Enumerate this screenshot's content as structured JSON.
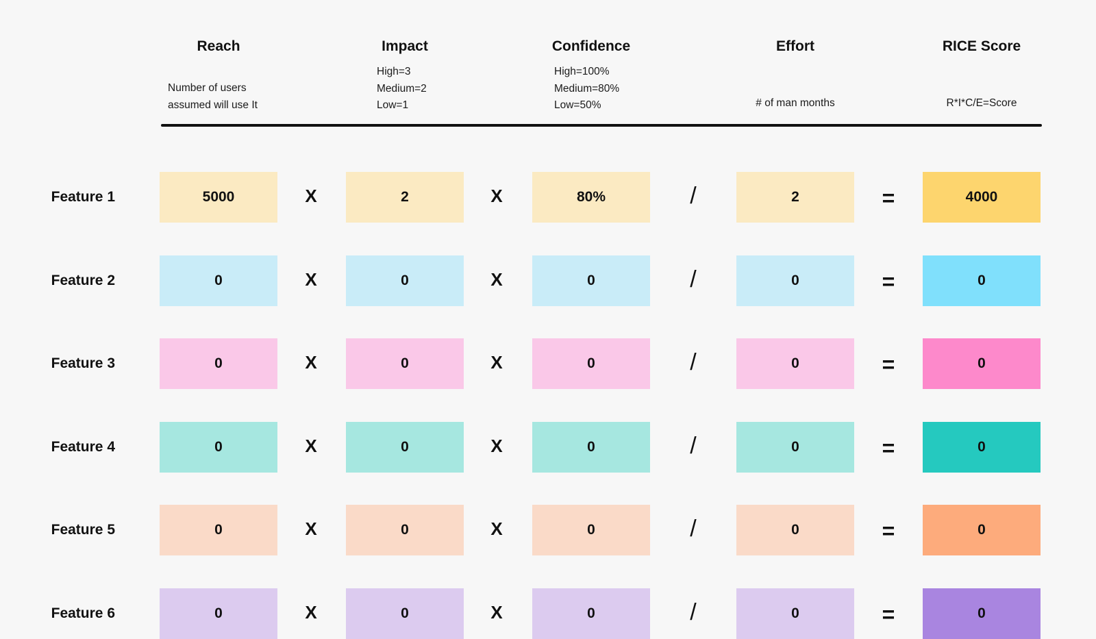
{
  "columns": {
    "reach": {
      "title": "Reach",
      "desc": [
        "Number of users",
        "assumed will use It"
      ]
    },
    "impact": {
      "title": "Impact",
      "desc": [
        "High=3",
        "Medium=2",
        "Low=1"
      ]
    },
    "confidence": {
      "title": "Confidence",
      "desc": [
        "High=100%",
        "Medium=80%",
        "Low=50%"
      ]
    },
    "effort": {
      "title": "Effort",
      "desc": [
        "# of man months"
      ]
    },
    "score": {
      "title": "RICE Score",
      "desc": [
        "R*I*C/E=Score"
      ]
    }
  },
  "operators": {
    "times": "X",
    "divide": "/",
    "equals": "="
  },
  "rows": [
    {
      "label": "Feature 1",
      "reach": "5000",
      "impact": "2",
      "confidence": "80%",
      "effort": "2",
      "score": "4000",
      "light": "#fbeac2",
      "strong": "#fdd56e"
    },
    {
      "label": "Feature 2",
      "reach": "0",
      "impact": "0",
      "confidence": "0",
      "effort": "0",
      "score": "0",
      "light": "#c9ecf8",
      "strong": "#80e0fc"
    },
    {
      "label": "Feature 3",
      "reach": "0",
      "impact": "0",
      "confidence": "0",
      "effort": "0",
      "score": "0",
      "light": "#fac8e8",
      "strong": "#fd89cb"
    },
    {
      "label": "Feature 4",
      "reach": "0",
      "impact": "0",
      "confidence": "0",
      "effort": "0",
      "score": "0",
      "light": "#a6e7e0",
      "strong": "#25c9bf"
    },
    {
      "label": "Feature 5",
      "reach": "0",
      "impact": "0",
      "confidence": "0",
      "effort": "0",
      "score": "0",
      "light": "#fadac8",
      "strong": "#fdab7c"
    },
    {
      "label": "Feature 6",
      "reach": "0",
      "impact": "0",
      "confidence": "0",
      "effort": "0",
      "score": "0",
      "light": "#dccbef",
      "strong": "#a985e0"
    }
  ]
}
